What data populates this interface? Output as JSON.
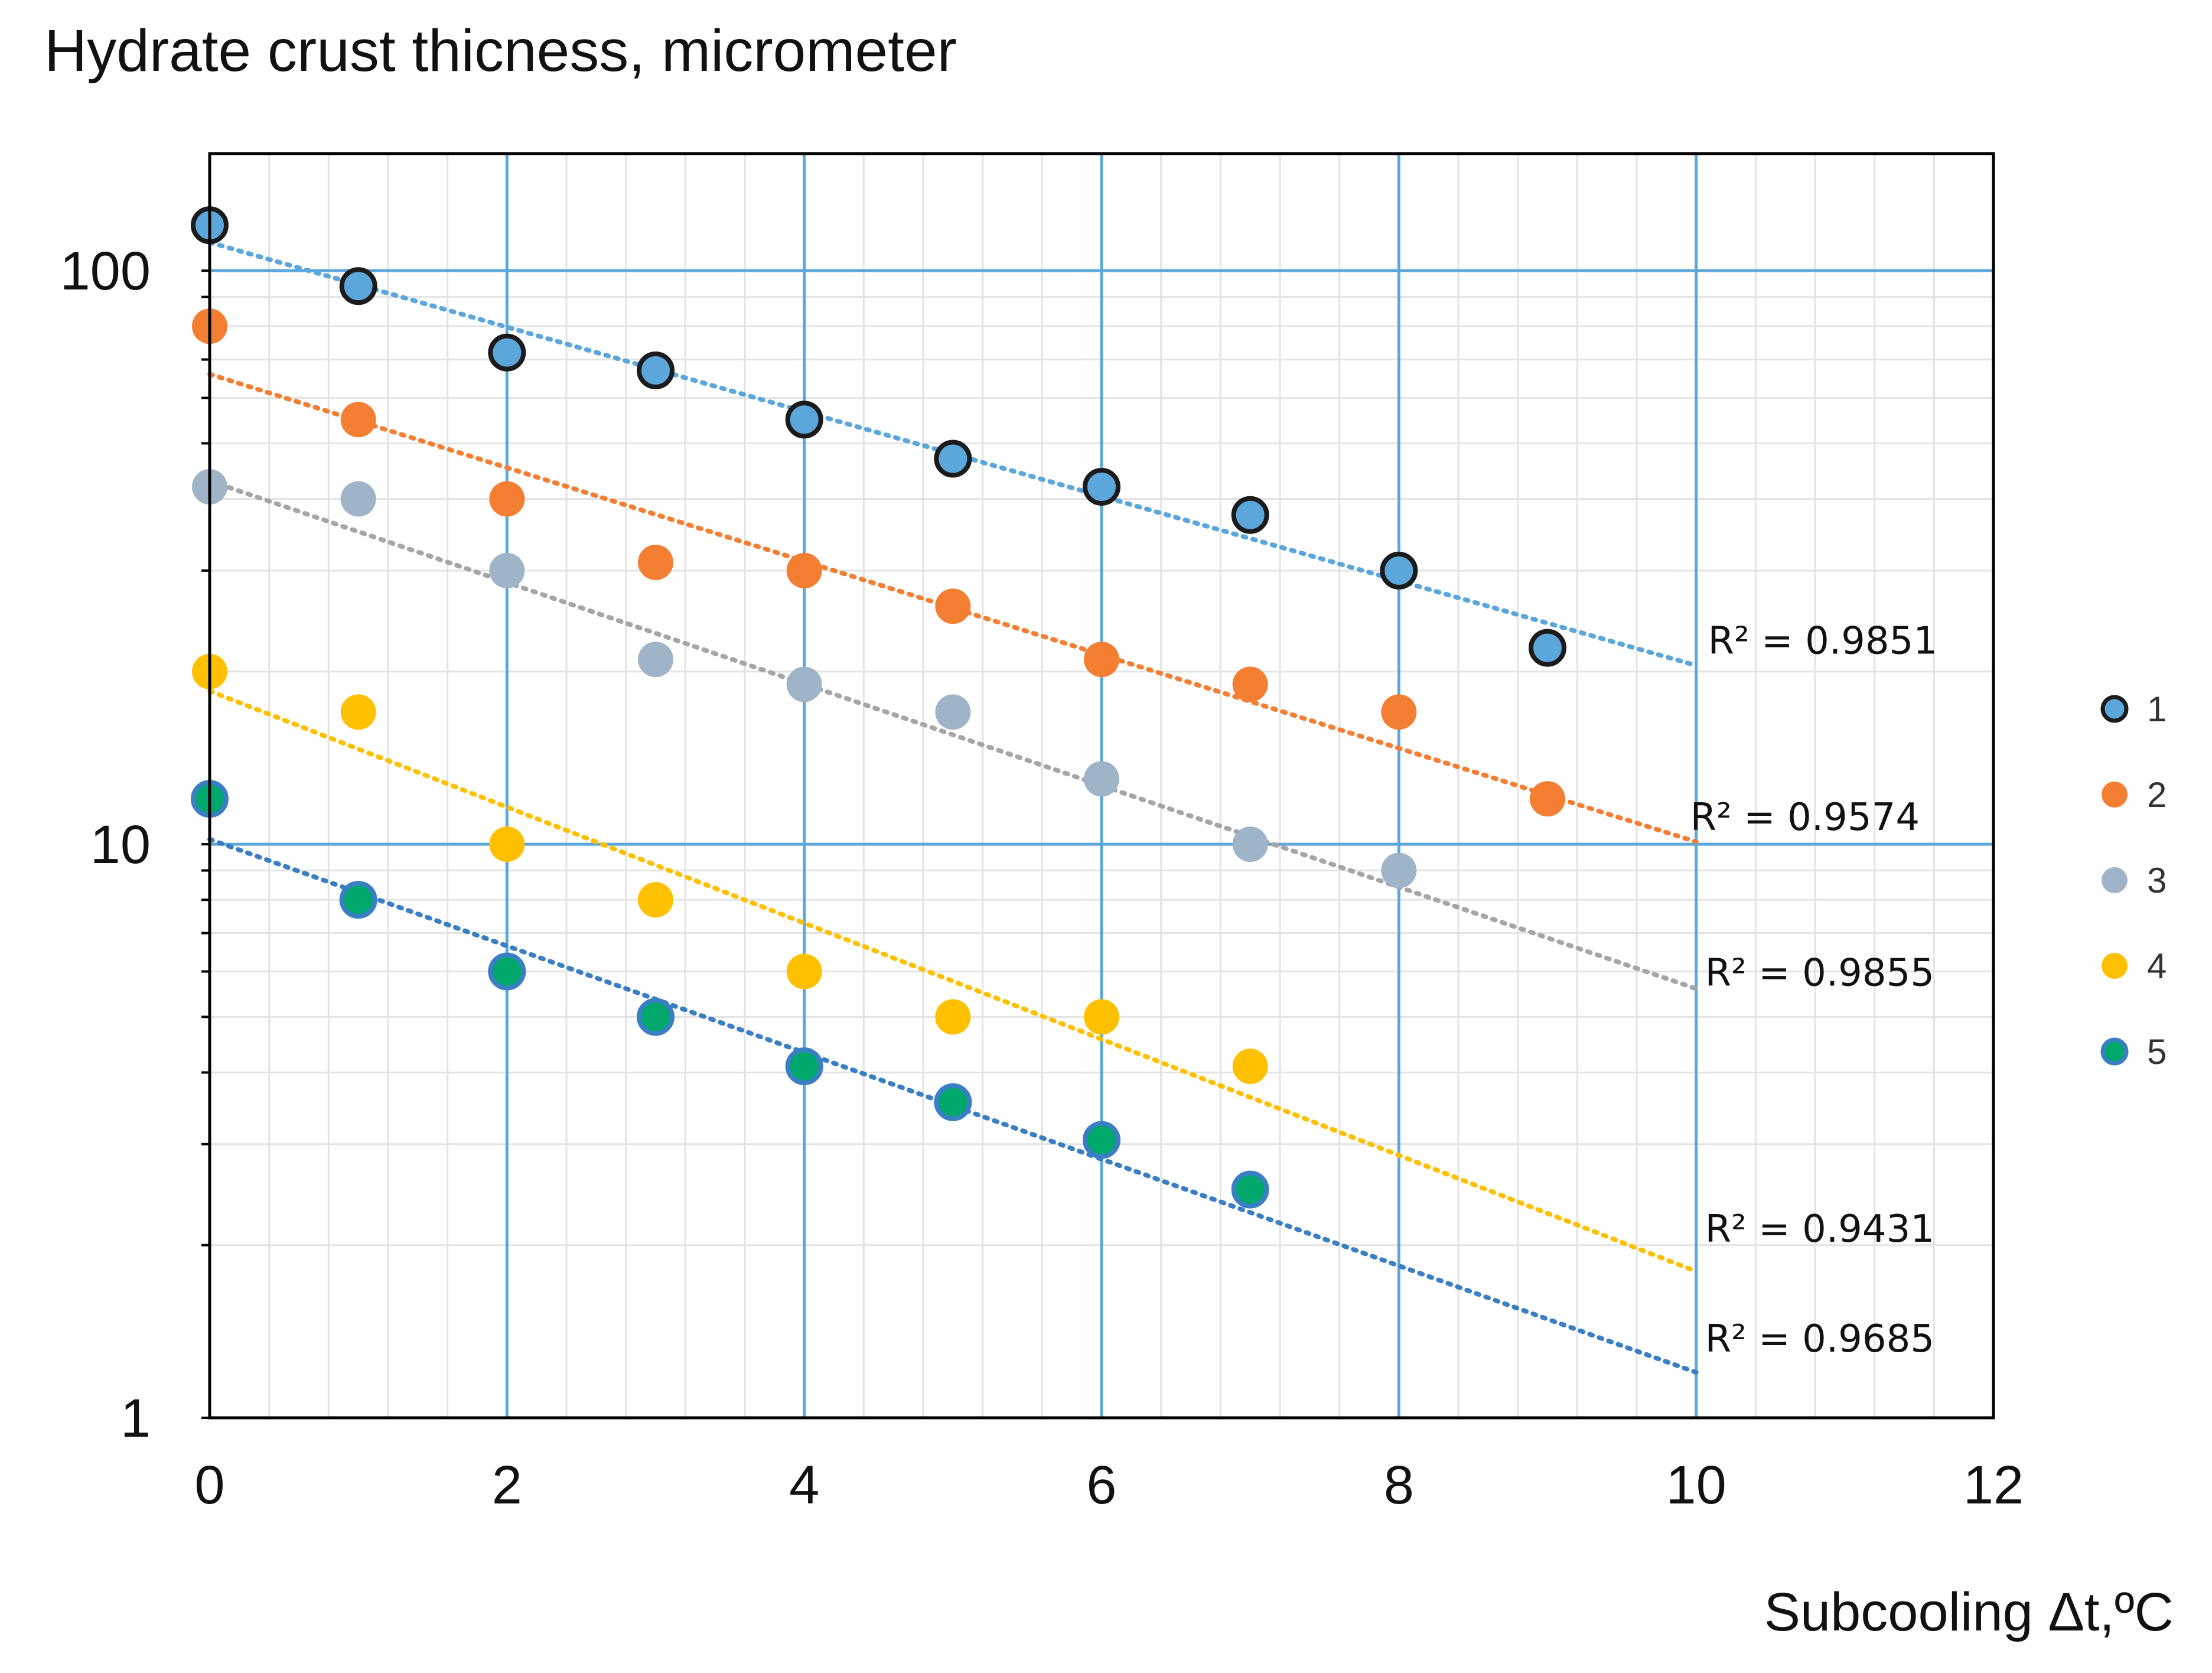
{
  "chart_data": {
    "type": "scatter",
    "title": "Hydrate crust thicness, micrometer",
    "xlabel": "Subcooling Δt,ºC",
    "ylabel": "",
    "xlim": [
      0,
      12
    ],
    "ylim": [
      1,
      160
    ],
    "yscale": "log",
    "grid": true,
    "legend_position": "right",
    "x_ticks": [
      0,
      2,
      4,
      6,
      8,
      10,
      12
    ],
    "x_tick_labels": [
      "0",
      "2",
      "4",
      "6",
      "8",
      "10",
      "12"
    ],
    "y_ticks": [
      1,
      10,
      100
    ],
    "y_tick_labels": [
      "1",
      "10",
      "100"
    ],
    "series": [
      {
        "name": "1",
        "color": "#5BA7DC",
        "outlined": true,
        "x": [
          0,
          1,
          2,
          3,
          4,
          5,
          6,
          7,
          8,
          9
        ],
        "y": [
          120,
          94,
          72,
          67,
          55,
          47,
          42,
          37.5,
          30,
          22
        ],
        "trendline": {
          "x_end": 10,
          "y_start": 112,
          "y_end": 20.5,
          "r2_label": "R² = 0.9851"
        }
      },
      {
        "name": "2",
        "color": "#F47F33",
        "outlined": false,
        "x": [
          0,
          1,
          2,
          3,
          4,
          5,
          6,
          7,
          8,
          9
        ],
        "y": [
          80,
          55,
          40,
          31,
          30,
          26,
          21,
          19,
          17,
          12
        ],
        "trendline": {
          "x_end": 10,
          "y_start": 66,
          "y_end": 10.1,
          "r2_label": "R² = 0.9574"
        }
      },
      {
        "name": "3",
        "color": "#9FB4C7",
        "outlined": false,
        "x": [
          0,
          1,
          2,
          3,
          4,
          5,
          6,
          7,
          8
        ],
        "y": [
          42,
          40,
          30,
          21,
          19,
          17,
          13,
          10,
          9
        ],
        "trendline": {
          "x_end": 10,
          "y_start": 43,
          "y_end": 5.6,
          "r2_label": "R² = 0.9855"
        }
      },
      {
        "name": "4",
        "color": "#FFC000",
        "outlined": false,
        "x": [
          0,
          1,
          2,
          3,
          4,
          5,
          6,
          7
        ],
        "y": [
          20,
          17,
          10,
          8,
          6,
          5,
          5,
          4.1
        ],
        "trendline": {
          "x_end": 10,
          "y_start": 18.5,
          "y_end": 1.8,
          "r2_label": "R² = 0.9431"
        }
      },
      {
        "name": "5",
        "color": "#00A86B",
        "stroke": "#3A7FC4",
        "outlined": true,
        "x": [
          0,
          1,
          2,
          3,
          4,
          5,
          6,
          7
        ],
        "y": [
          12,
          8,
          6,
          5,
          4.1,
          3.55,
          3.05,
          2.5
        ],
        "trendline": {
          "x_end": 10,
          "y_start": 10.2,
          "y_end": 1.2,
          "r2_label": "R² = 0.9685"
        }
      }
    ],
    "trendline_colors": [
      "#5BA7DC",
      "#F47F33",
      "#A6A6A6",
      "#FFC000",
      "#3A7FC4"
    ]
  }
}
